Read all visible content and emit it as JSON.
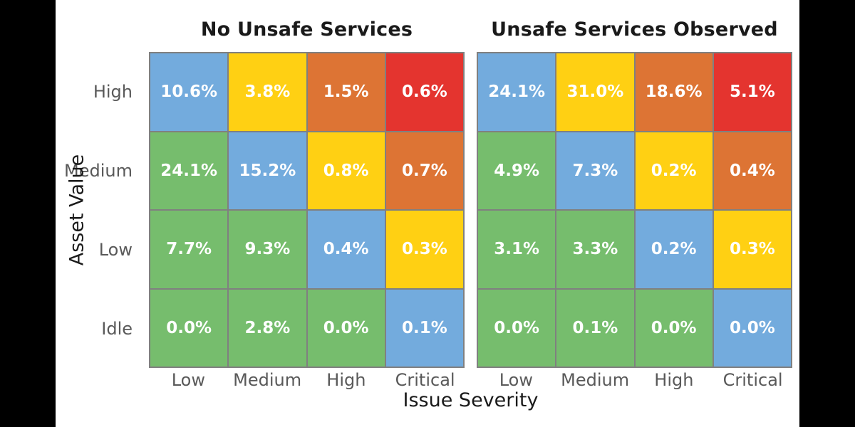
{
  "palette": {
    "green": "#76bd6d",
    "blue": "#73abdd",
    "yellow": "#ffd013",
    "orange": "#dd7434",
    "red": "#e4342f",
    "grid_border": "#808080",
    "tick_text": "#595959",
    "axis_text": "#1a1a1a",
    "cell_text": "#ffffff",
    "figure_background": "#000000",
    "plot_background": "#ffffff"
  },
  "axes": {
    "xlabel": "Issue Severity",
    "ylabel": "Asset Value"
  },
  "chart_data": [
    {
      "type": "heatmap",
      "title": "No Unsafe Services",
      "xlabel": "Issue Severity",
      "ylabel": "Asset Value",
      "x_categories": [
        "Low",
        "Medium",
        "High",
        "Critical"
      ],
      "y_categories": [
        "High",
        "Medium",
        "Low",
        "Idle"
      ],
      "unit": "%",
      "rows": [
        [
          {
            "value": 10.6,
            "label": "10.6%",
            "color": "blue"
          },
          {
            "value": 3.8,
            "label": "3.8%",
            "color": "yellow"
          },
          {
            "value": 1.5,
            "label": "1.5%",
            "color": "orange"
          },
          {
            "value": 0.6,
            "label": "0.6%",
            "color": "red"
          }
        ],
        [
          {
            "value": 24.1,
            "label": "24.1%",
            "color": "green"
          },
          {
            "value": 15.2,
            "label": "15.2%",
            "color": "blue"
          },
          {
            "value": 0.8,
            "label": "0.8%",
            "color": "yellow"
          },
          {
            "value": 0.7,
            "label": "0.7%",
            "color": "orange"
          }
        ],
        [
          {
            "value": 7.7,
            "label": "7.7%",
            "color": "green"
          },
          {
            "value": 9.3,
            "label": "9.3%",
            "color": "green"
          },
          {
            "value": 0.4,
            "label": "0.4%",
            "color": "blue"
          },
          {
            "value": 0.3,
            "label": "0.3%",
            "color": "yellow"
          }
        ],
        [
          {
            "value": 0.0,
            "label": "0.0%",
            "color": "green"
          },
          {
            "value": 2.8,
            "label": "2.8%",
            "color": "green"
          },
          {
            "value": 0.0,
            "label": "0.0%",
            "color": "green"
          },
          {
            "value": 0.1,
            "label": "0.1%",
            "color": "blue"
          }
        ]
      ]
    },
    {
      "type": "heatmap",
      "title": "Unsafe Services Observed",
      "xlabel": "Issue Severity",
      "ylabel": "Asset Value",
      "x_categories": [
        "Low",
        "Medium",
        "High",
        "Critical"
      ],
      "y_categories": [
        "High",
        "Medium",
        "Low",
        "Idle"
      ],
      "unit": "%",
      "rows": [
        [
          {
            "value": 24.1,
            "label": "24.1%",
            "color": "blue"
          },
          {
            "value": 31.0,
            "label": "31.0%",
            "color": "yellow"
          },
          {
            "value": 18.6,
            "label": "18.6%",
            "color": "orange"
          },
          {
            "value": 5.1,
            "label": "5.1%",
            "color": "red"
          }
        ],
        [
          {
            "value": 4.9,
            "label": "4.9%",
            "color": "green"
          },
          {
            "value": 7.3,
            "label": "7.3%",
            "color": "blue"
          },
          {
            "value": 0.2,
            "label": "0.2%",
            "color": "yellow"
          },
          {
            "value": 0.4,
            "label": "0.4%",
            "color": "orange"
          }
        ],
        [
          {
            "value": 3.1,
            "label": "3.1%",
            "color": "green"
          },
          {
            "value": 3.3,
            "label": "3.3%",
            "color": "green"
          },
          {
            "value": 0.2,
            "label": "0.2%",
            "color": "blue"
          },
          {
            "value": 0.3,
            "label": "0.3%",
            "color": "yellow"
          }
        ],
        [
          {
            "value": 0.0,
            "label": "0.0%",
            "color": "green"
          },
          {
            "value": 0.1,
            "label": "0.1%",
            "color": "green"
          },
          {
            "value": 0.0,
            "label": "0.0%",
            "color": "green"
          },
          {
            "value": 0.0,
            "label": "0.0%",
            "color": "blue"
          }
        ]
      ]
    }
  ]
}
